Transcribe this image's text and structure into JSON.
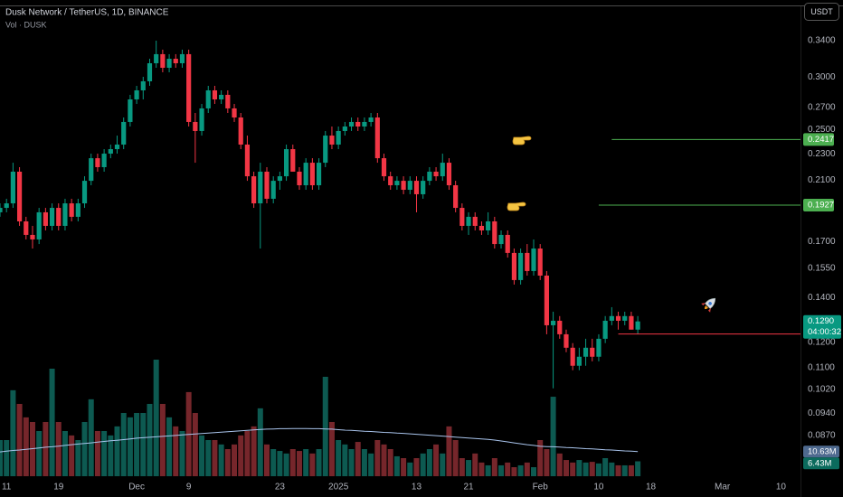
{
  "chart_data": {
    "type": "candlestick",
    "title": "Dusk Network / TetherUS, 1D, BINANCE",
    "currency": "USDT",
    "x": [
      "2024-11-10",
      "2024-11-11",
      "2024-11-12",
      "2024-11-13",
      "2024-11-14",
      "2024-11-15",
      "2024-11-16",
      "2024-11-17",
      "2024-11-18",
      "2024-11-19",
      "2024-11-20",
      "2024-11-21",
      "2024-11-22",
      "2024-11-23",
      "2024-11-24",
      "2024-11-25",
      "2024-11-26",
      "2024-11-27",
      "2024-11-28",
      "2024-11-29",
      "2024-11-30",
      "2024-12-01",
      "2024-12-02",
      "2024-12-03",
      "2024-12-04",
      "2024-12-05",
      "2024-12-06",
      "2024-12-07",
      "2024-12-08",
      "2024-12-09",
      "2024-12-10",
      "2024-12-11",
      "2024-12-12",
      "2024-12-13",
      "2024-12-14",
      "2024-12-15",
      "2024-12-16",
      "2024-12-17",
      "2024-12-18",
      "2024-12-19",
      "2024-12-20",
      "2024-12-21",
      "2024-12-22",
      "2024-12-23",
      "2024-12-24",
      "2024-12-25",
      "2024-12-26",
      "2024-12-27",
      "2024-12-28",
      "2024-12-29",
      "2024-12-30",
      "2024-12-31",
      "2025-01-01",
      "2025-01-02",
      "2025-01-03",
      "2025-01-04",
      "2025-01-05",
      "2025-01-06",
      "2025-01-07",
      "2025-01-08",
      "2025-01-09",
      "2025-01-10",
      "2025-01-11",
      "2025-01-12",
      "2025-01-13",
      "2025-01-14",
      "2025-01-15",
      "2025-01-16",
      "2025-01-17",
      "2025-01-18",
      "2025-01-19",
      "2025-01-20",
      "2025-01-21",
      "2025-01-22",
      "2025-01-23",
      "2025-01-24",
      "2025-01-25",
      "2025-01-26",
      "2025-01-27",
      "2025-01-28",
      "2025-01-29",
      "2025-01-30",
      "2025-01-31",
      "2025-02-01",
      "2025-02-02",
      "2025-02-03",
      "2025-02-04",
      "2025-02-05",
      "2025-02-06",
      "2025-02-07",
      "2025-02-08",
      "2025-02-09",
      "2025-02-10",
      "2025-02-11",
      "2025-02-12",
      "2025-02-13",
      "2025-02-14",
      "2025-02-15",
      "2025-02-16"
    ],
    "open": [
      0.188,
      0.1909,
      0.1939,
      0.2163,
      0.1822,
      0.1739,
      0.1712,
      0.188,
      0.1794,
      0.1909,
      0.1794,
      0.1939,
      0.1851,
      0.1939,
      0.2096,
      0.2266,
      0.2197,
      0.2302,
      0.2338,
      0.2375,
      0.2568,
      0.2776,
      0.2864,
      0.2955,
      0.3145,
      0.3245,
      0.3096,
      0.3194,
      0.3145,
      0.3245,
      0.2568,
      0.2489,
      0.2691,
      0.2864,
      0.2776,
      0.282,
      0.2691,
      0.2608,
      0.2375,
      0.2129,
      0.1939,
      0.2163,
      0.197,
      0.2096,
      0.2129,
      0.2338,
      0.2163,
      0.2064,
      0.2231,
      0.2064,
      0.2231,
      0.245,
      0.2375,
      0.2489,
      0.2528,
      0.2568,
      0.2528,
      0.2568,
      0.2608,
      0.2266,
      0.2129,
      0.2064,
      0.2096,
      0.2032,
      0.2096,
      0.2001,
      0.2096,
      0.2163,
      0.2129,
      0.2231,
      0.2064,
      0.1909,
      0.1794,
      0.1851,
      0.1794,
      0.1766,
      0.1822,
      0.1685,
      0.1739,
      0.1634,
      0.1488,
      0.1634,
      0.1535,
      0.1659,
      0.1511,
      0.1273,
      0.1293,
      0.1234,
      0.1178,
      0.1107,
      0.1142,
      0.1178,
      0.1142,
      0.1215,
      0.1293,
      0.1314,
      0.1293,
      0.1314,
      0.1254
    ],
    "high": [
      0.1939,
      0.197,
      0.2231,
      0.2197,
      0.1851,
      0.1794,
      0.1909,
      0.1909,
      0.1939,
      0.1939,
      0.197,
      0.197,
      0.197,
      0.2129,
      0.2302,
      0.2302,
      0.2338,
      0.2375,
      0.245,
      0.2608,
      0.282,
      0.2909,
      0.3001,
      0.3194,
      0.34,
      0.3296,
      0.3245,
      0.3245,
      0.3296,
      0.3296,
      0.2649,
      0.2733,
      0.2909,
      0.2909,
      0.2864,
      0.2864,
      0.2733,
      0.2649,
      0.245,
      0.2163,
      0.2231,
      0.2197,
      0.2129,
      0.2163,
      0.2375,
      0.2375,
      0.2197,
      0.2266,
      0.2266,
      0.2266,
      0.2489,
      0.2528,
      0.2528,
      0.2568,
      0.2608,
      0.2608,
      0.2608,
      0.2649,
      0.2649,
      0.2302,
      0.2163,
      0.2129,
      0.2129,
      0.2129,
      0.2129,
      0.2129,
      0.2197,
      0.2197,
      0.2302,
      0.2266,
      0.2096,
      0.1939,
      0.188,
      0.188,
      0.1822,
      0.188,
      0.1851,
      0.1766,
      0.1766,
      0.1659,
      0.1659,
      0.1685,
      0.1712,
      0.1685,
      0.1535,
      0.1334,
      0.1314,
      0.1254,
      0.1197,
      0.1178,
      0.1215,
      0.1215,
      0.1234,
      0.1314,
      0.1355,
      0.1334,
      0.1334,
      0.1334,
      0.1314
    ],
    "low": [
      0.1851,
      0.188,
      0.1909,
      0.1794,
      0.1712,
      0.1659,
      0.1685,
      0.1766,
      0.1766,
      0.1766,
      0.1766,
      0.1822,
      0.1822,
      0.1909,
      0.2064,
      0.2163,
      0.2163,
      0.2266,
      0.2302,
      0.2338,
      0.2528,
      0.2733,
      0.2776,
      0.2909,
      0.3096,
      0.3048,
      0.3048,
      0.3096,
      0.3096,
      0.2528,
      0.2231,
      0.245,
      0.2649,
      0.2733,
      0.2733,
      0.2649,
      0.2568,
      0.2338,
      0.2096,
      0.1909,
      0.1659,
      0.1939,
      0.1939,
      0.2032,
      0.2096,
      0.2163,
      0.2032,
      0.2032,
      0.2032,
      0.2032,
      0.2197,
      0.2338,
      0.2338,
      0.245,
      0.2489,
      0.2489,
      0.2489,
      0.2528,
      0.2231,
      0.2096,
      0.2032,
      0.2032,
      0.2001,
      0.2001,
      0.188,
      0.197,
      0.2064,
      0.2096,
      0.2096,
      0.2032,
      0.188,
      0.1766,
      0.1739,
      0.1766,
      0.1739,
      0.1739,
      0.1659,
      0.1659,
      0.1608,
      0.1465,
      0.1465,
      0.1511,
      0.1511,
      0.1488,
      0.1234,
      0.1024,
      0.1215,
      0.116,
      0.109,
      0.109,
      0.1107,
      0.1124,
      0.1124,
      0.1197,
      0.1273,
      0.1254,
      0.1273,
      0.1254,
      0.1234
    ],
    "close": [
      0.1909,
      0.1939,
      0.2163,
      0.1822,
      0.1739,
      0.1712,
      0.188,
      0.1794,
      0.1909,
      0.1794,
      0.1939,
      0.1851,
      0.1939,
      0.2096,
      0.2266,
      0.2197,
      0.2302,
      0.2338,
      0.2375,
      0.2568,
      0.2776,
      0.2864,
      0.2955,
      0.3145,
      0.3245,
      0.3096,
      0.3194,
      0.3145,
      0.3245,
      0.2568,
      0.2489,
      0.2691,
      0.2864,
      0.2776,
      0.282,
      0.2691,
      0.2608,
      0.2375,
      0.2129,
      0.1939,
      0.2163,
      0.197,
      0.2096,
      0.2129,
      0.2338,
      0.2163,
      0.2064,
      0.2231,
      0.2064,
      0.2231,
      0.245,
      0.2375,
      0.2489,
      0.2528,
      0.2568,
      0.2528,
      0.2568,
      0.2608,
      0.2266,
      0.2129,
      0.2064,
      0.2096,
      0.2032,
      0.2096,
      0.2001,
      0.2096,
      0.2163,
      0.2129,
      0.2231,
      0.2064,
      0.1909,
      0.1794,
      0.1851,
      0.1794,
      0.1766,
      0.1822,
      0.1685,
      0.1739,
      0.1634,
      0.1488,
      0.1634,
      0.1535,
      0.1659,
      0.1511,
      0.1273,
      0.1293,
      0.1234,
      0.1178,
      0.1107,
      0.1142,
      0.1178,
      0.1142,
      0.1215,
      0.1293,
      0.1314,
      0.1293,
      0.1314,
      0.1254,
      0.129
    ],
    "up_color": "#089981",
    "down_color": "#f23645",
    "volume": {
      "name": "Vol · DUSK",
      "up_color": "#0d5a51",
      "down_color": "#76262b",
      "values": [
        15.6,
        15.6,
        37.1,
        31.2,
        25.4,
        23.4,
        19.5,
        23.4,
        46.4,
        23.4,
        19.5,
        17.6,
        15.6,
        23.4,
        33.2,
        19.5,
        19.5,
        17.6,
        21.5,
        27.3,
        25.4,
        27.3,
        27.3,
        31.2,
        50.3,
        31.2,
        25.4,
        21.5,
        19.5,
        36.3,
        27.3,
        17.6,
        15.6,
        15.6,
        13.7,
        11.7,
        13.7,
        17.6,
        19.5,
        21.5,
        29.3,
        13.7,
        11.7,
        10.9,
        9.8,
        11.7,
        10.9,
        11.7,
        9.8,
        11.7,
        42.9,
        23.4,
        15.6,
        13.7,
        11.7,
        14.8,
        11.7,
        9.8,
        15.6,
        13.7,
        11.7,
        8.6,
        7.8,
        5.9,
        7.8,
        9.8,
        11.7,
        13.7,
        9.8,
        21.5,
        15.6,
        7.8,
        7.0,
        9.8,
        5.9,
        4.7,
        7.8,
        4.7,
        5.9,
        3.9,
        4.7,
        5.9,
        3.9,
        15.6,
        11.7,
        34.3,
        9.8,
        7.0,
        5.9,
        7.0,
        5.9,
        6.2,
        5.5,
        7.8,
        5.9,
        4.7,
        4.7,
        4.7,
        6.43
      ],
      "last_label": "6.43M",
      "label_color": "#0b6b5d"
    },
    "volume_ma": {
      "color": "#a9c4ec",
      "label_color": "#4f6a8f",
      "last_label": "10.63M",
      "values": [
        10.5,
        10.8,
        11.1,
        11.3,
        11.6,
        11.9,
        12.2,
        12.5,
        12.7,
        13.0,
        13.3,
        13.6,
        13.9,
        14.1,
        14.4,
        14.7,
        15.0,
        15.3,
        15.5,
        15.8,
        16.1,
        16.4,
        16.6,
        16.8,
        17.0,
        17.2,
        17.4,
        17.6,
        17.8,
        18.0,
        18.2,
        18.4,
        18.6,
        18.8,
        19.0,
        19.2,
        19.4,
        19.6,
        19.8,
        20.0,
        20.2,
        20.3,
        20.4,
        20.5,
        20.5,
        20.6,
        20.6,
        20.6,
        20.5,
        20.5,
        20.4,
        20.3,
        20.1,
        19.9,
        19.8,
        19.6,
        19.4,
        19.3,
        19.1,
        18.9,
        18.8,
        18.6,
        18.5,
        18.3,
        18.1,
        17.9,
        17.7,
        17.5,
        17.3,
        17.1,
        16.9,
        16.7,
        16.5,
        16.3,
        16.1,
        15.9,
        15.6,
        15.2,
        14.8,
        14.4,
        14.0,
        13.6,
        13.3,
        12.9,
        12.8,
        12.7,
        12.6,
        12.4,
        12.3,
        12.1,
        11.9,
        11.8,
        11.6,
        11.4,
        11.3,
        11.1,
        10.9,
        10.8,
        10.63
      ]
    },
    "last_price": {
      "value": 0.129,
      "label": "0.1290"
    },
    "countdown": "04:00:32",
    "levels": [
      {
        "value": 0.2417,
        "color": "#4caf50",
        "start": "2025-02-12",
        "show_label": true
      },
      {
        "value": 0.1927,
        "color": "#4caf50",
        "start": "2025-02-10",
        "show_label": true
      },
      {
        "value": 0.1235,
        "color": "#f23645",
        "start": "2025-02-13",
        "show_label": false
      }
    ],
    "log_scale": true,
    "ylim": [
      0.0749,
      0.3792
    ],
    "yticks": [
      {
        "value": 0.34,
        "label": "0.3400"
      },
      {
        "value": 0.3,
        "label": "0.3000"
      },
      {
        "value": 0.27,
        "label": "0.2700"
      },
      {
        "value": 0.25,
        "label": "0.2500"
      },
      {
        "value": 0.23,
        "label": "0.2300"
      },
      {
        "value": 0.21,
        "label": "0.2100"
      },
      {
        "value": 0.17,
        "label": "0.1700"
      },
      {
        "value": 0.155,
        "label": "0.1550"
      },
      {
        "value": 0.14,
        "label": "0.1400"
      },
      {
        "value": 0.12,
        "label": "0.1200"
      },
      {
        "value": 0.11,
        "label": "0.1100"
      },
      {
        "value": 0.102,
        "label": "0.1020"
      },
      {
        "value": 0.094,
        "label": "0.0940"
      },
      {
        "value": 0.087,
        "label": "0.0870"
      }
    ],
    "xlim": [
      "2024-11-10",
      "2025-03-13"
    ],
    "xticks": [
      {
        "value": "2024-11-11",
        "label": "11"
      },
      {
        "value": "2024-11-19",
        "label": "19"
      },
      {
        "value": "2024-12-01",
        "label": "Dec"
      },
      {
        "value": "2024-12-09",
        "label": "9"
      },
      {
        "value": "2024-12-23",
        "label": "23"
      },
      {
        "value": "2025-01-01",
        "label": "2025"
      },
      {
        "value": "2025-01-13",
        "label": "13"
      },
      {
        "value": "2025-01-21",
        "label": "21"
      },
      {
        "value": "2025-02-01",
        "label": "Feb"
      },
      {
        "value": "2025-02-10",
        "label": "10"
      },
      {
        "value": "2025-02-18",
        "label": "18"
      },
      {
        "value": "2025-03-01",
        "label": "Mar"
      },
      {
        "value": "2025-03-10",
        "label": "10"
      }
    ],
    "grid": false
  }
}
